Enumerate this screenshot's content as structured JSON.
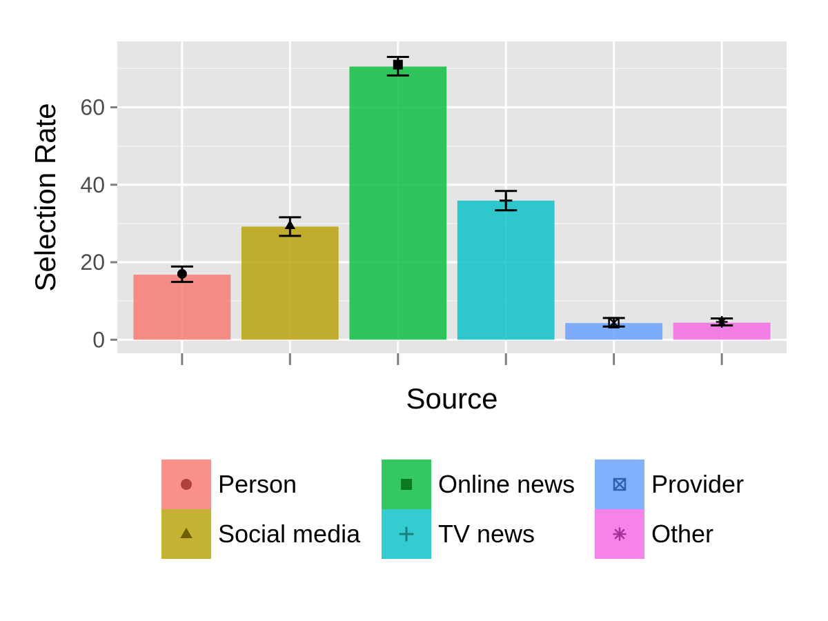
{
  "chart_data": {
    "type": "bar",
    "xlabel": "Source",
    "ylabel": "Selection Rate",
    "categories": [
      "Person",
      "Social media",
      "Online news",
      "TV news",
      "Provider",
      "Other"
    ],
    "values": [
      16.8,
      29.2,
      70.5,
      35.9,
      4.3,
      4.4
    ],
    "error_low": [
      14.9,
      26.8,
      68.2,
      33.4,
      3.4,
      3.7
    ],
    "error_high": [
      18.9,
      31.6,
      73.0,
      38.4,
      5.6,
      5.5
    ],
    "point_values": [
      17.0,
      29.5,
      71.0,
      35.9,
      4.4,
      4.6
    ],
    "ylim": [
      -3.5,
      77
    ],
    "y_ticks": [
      0,
      20,
      40,
      60
    ],
    "y_tick_labels": [
      "0",
      "20",
      "40",
      "60"
    ],
    "grid": true,
    "panel_background": "#e5e5e5",
    "legend_position": "bottom",
    "legend": [
      {
        "label": "Person",
        "color": "#F8766D",
        "shape": "circle",
        "shape_color": "#b0403a"
      },
      {
        "label": "Social media",
        "color": "#B79F00",
        "shape": "triangle",
        "shape_color": "#6e5f00"
      },
      {
        "label": "Online news",
        "color": "#00BA38",
        "shape": "square",
        "shape_color": "#0a7a22"
      },
      {
        "label": "TV news",
        "color": "#00BFC4",
        "shape": "plus",
        "shape_color": "#1a7f82"
      },
      {
        "label": "Provider",
        "color": "#619CFF",
        "shape": "square-x",
        "shape_color": "#2f5fb0"
      },
      {
        "label": "Other",
        "color": "#F564E3",
        "shape": "asterisk",
        "shape_color": "#a3339a"
      }
    ]
  }
}
